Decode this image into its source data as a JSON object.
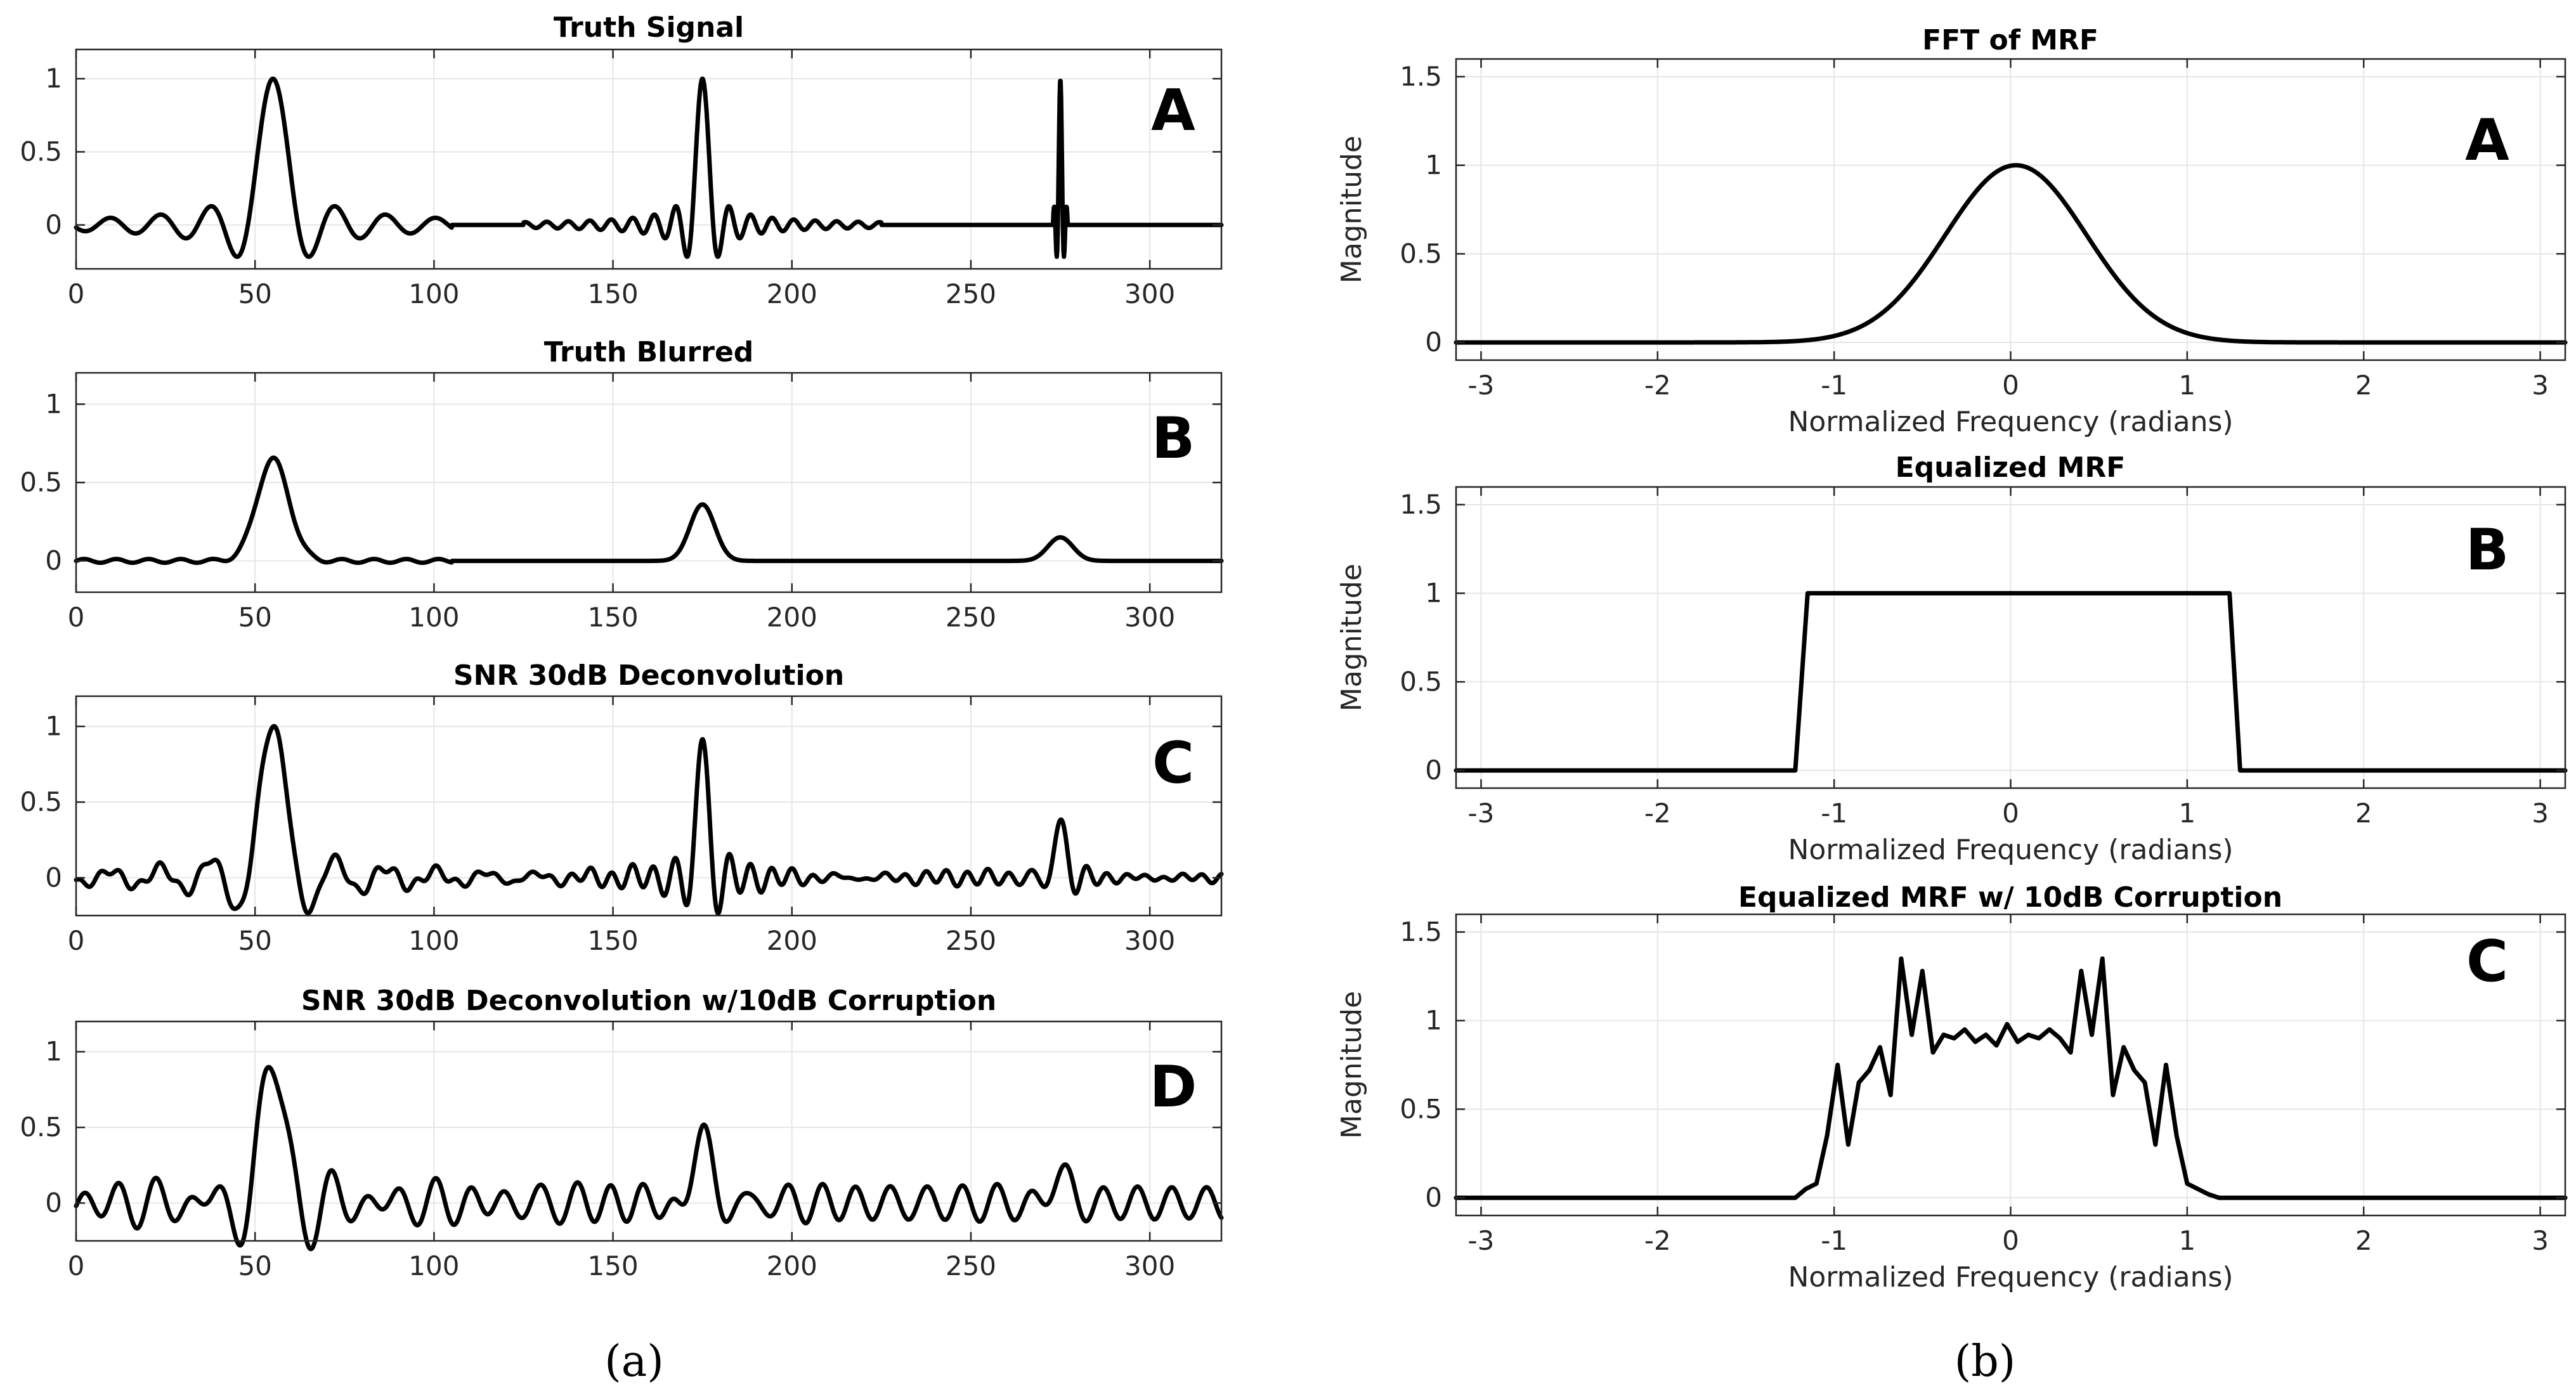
{
  "figure": {
    "captions": [
      "(a)",
      "(b)"
    ],
    "colors": {
      "line": "#000000",
      "grid": "#e6e6e6",
      "axis": "#262626",
      "background": "#ffffff"
    }
  },
  "chart_data": [
    {
      "id": "a1",
      "type": "line",
      "title": "Truth Signal",
      "panel_letter": "A",
      "xlabel": "",
      "ylabel": "",
      "xlim": [
        0,
        320
      ],
      "ylim": [
        -0.3,
        1.2
      ],
      "xticks": [
        0,
        50,
        100,
        150,
        200,
        250,
        300
      ],
      "xtick_labels": [
        "0",
        "50",
        "100",
        "150",
        "200",
        "250",
        "300"
      ],
      "yticks": [
        0,
        0.5,
        1
      ],
      "ytick_labels": [
        "0",
        "0.5",
        "1"
      ],
      "grid": true,
      "series": [
        {
          "name": "Truth Signal",
          "generator": "sinc_pulses",
          "pulses": [
            {
              "center": 55,
              "amplitude": 1.0,
              "width": 7,
              "support": [
                0,
                105
              ]
            },
            {
              "center": 175,
              "amplitude": 1.0,
              "width": 3,
              "support": [
                125,
                225
              ]
            },
            {
              "center": 275,
              "amplitude": 1.0,
              "width": 0.7,
              "support": [
                273,
                277
              ]
            }
          ]
        }
      ]
    },
    {
      "id": "a2",
      "type": "line",
      "title": "Truth Blurred",
      "panel_letter": "B",
      "xlabel": "",
      "ylabel": "",
      "xlim": [
        0,
        320
      ],
      "ylim": [
        -0.2,
        1.2
      ],
      "xticks": [
        0,
        50,
        100,
        150,
        200,
        250,
        300
      ],
      "xtick_labels": [
        "0",
        "50",
        "100",
        "150",
        "200",
        "250",
        "300"
      ],
      "yticks": [
        0,
        0.5,
        1
      ],
      "ytick_labels": [
        "0",
        "0.5",
        "1"
      ],
      "grid": true,
      "series": [
        {
          "name": "Truth Blurred",
          "generator": "gauss_pulses",
          "ripple": {
            "amplitude": 0.012,
            "period": 9,
            "range": [
              0,
              105
            ]
          },
          "pulses": [
            {
              "center": 55,
              "amplitude": 0.65,
              "sigma": 4.5
            },
            {
              "center": 175,
              "amplitude": 0.36,
              "sigma": 3.5
            },
            {
              "center": 275,
              "amplitude": 0.15,
              "sigma": 3.5
            }
          ]
        }
      ]
    },
    {
      "id": "a3",
      "type": "line",
      "title": "SNR 30dB Deconvolution",
      "panel_letter": "C",
      "xlabel": "",
      "ylabel": "",
      "xlim": [
        0,
        320
      ],
      "ylim": [
        -0.25,
        1.2
      ],
      "xticks": [
        0,
        50,
        100,
        150,
        200,
        250,
        300
      ],
      "xtick_labels": [
        "0",
        "50",
        "100",
        "150",
        "200",
        "250",
        "300"
      ],
      "yticks": [
        0,
        0.5,
        1
      ],
      "ytick_labels": [
        "0",
        "0.5",
        "1"
      ],
      "grid": true,
      "series": [
        {
          "name": "SNR 30dB Deconvolution",
          "generator": "sinc_pulses",
          "ripple": {
            "amplitude": 0.025,
            "period": 5.5
          },
          "pulses": [
            {
              "center": 55,
              "amplitude": 1.0,
              "width": 7,
              "support": [
                0,
                320
              ]
            },
            {
              "center": 175,
              "amplitude": 0.95,
              "width": 3,
              "support": [
                0,
                320
              ]
            },
            {
              "center": 275,
              "amplitude": 0.4,
              "width": 3,
              "support": [
                0,
                320
              ]
            }
          ]
        }
      ]
    },
    {
      "id": "a4",
      "type": "line",
      "title": "SNR 30dB Deconvolution w/10dB Corruption",
      "panel_letter": "D",
      "xlabel": "",
      "ylabel": "",
      "xlim": [
        0,
        320
      ],
      "ylim": [
        -0.25,
        1.2
      ],
      "xticks": [
        0,
        50,
        100,
        150,
        200,
        250,
        300
      ],
      "xtick_labels": [
        "0",
        "50",
        "100",
        "150",
        "200",
        "250",
        "300"
      ],
      "yticks": [
        0,
        0.5,
        1
      ],
      "ytick_labels": [
        "0",
        "0.5",
        "1"
      ],
      "grid": true,
      "series": [
        {
          "name": "SNR 30dB Deconvolution w/10dB Corruption",
          "generator": "sinc_pulses",
          "ripple": {
            "amplitude": 0.11,
            "period": 9.8
          },
          "pulses": [
            {
              "center": 55,
              "amplitude": 0.93,
              "width": 7,
              "support": [
                0,
                320
              ]
            },
            {
              "center": 175,
              "amplitude": 0.6,
              "width": 4,
              "support": [
                0,
                320
              ]
            },
            {
              "center": 275,
              "amplitude": 0.18,
              "width": 6,
              "support": [
                0,
                320
              ]
            }
          ]
        }
      ]
    },
    {
      "id": "b1",
      "type": "line",
      "title": "FFT of MRF",
      "panel_letter": "A",
      "xlabel": "Normalized Frequency (radians)",
      "ylabel": "Magnitude",
      "xlim": [
        -3.1416,
        3.1416
      ],
      "ylim": [
        -0.1,
        1.6
      ],
      "xticks": [
        -3,
        -2,
        -1,
        0,
        1,
        2,
        3
      ],
      "xtick_labels": [
        "-3",
        "-2",
        "-1",
        "0",
        "1",
        "2",
        "3"
      ],
      "yticks": [
        0,
        0.5,
        1,
        1.5
      ],
      "ytick_labels": [
        "0",
        "0.5",
        "1",
        "1.5"
      ],
      "grid": true,
      "series": [
        {
          "name": "FFT of MRF",
          "generator": "gaussian",
          "center": 0.03,
          "amplitude": 1.0,
          "sigma": 0.4
        }
      ]
    },
    {
      "id": "b2",
      "type": "line",
      "title": "Equalized MRF",
      "panel_letter": "B",
      "xlabel": "Normalized Frequency (radians)",
      "ylabel": "Magnitude",
      "xlim": [
        -3.1416,
        3.1416
      ],
      "ylim": [
        -0.1,
        1.6
      ],
      "xticks": [
        -3,
        -2,
        -1,
        0,
        1,
        2,
        3
      ],
      "xtick_labels": [
        "-3",
        "-2",
        "-1",
        "0",
        "1",
        "2",
        "3"
      ],
      "yticks": [
        0,
        0.5,
        1,
        1.5
      ],
      "ytick_labels": [
        "0",
        "0.5",
        "1",
        "1.5"
      ],
      "grid": true,
      "series": [
        {
          "name": "Equalized MRF",
          "generator": "points",
          "x": [
            -3.1416,
            -1.22,
            -1.15,
            1.24,
            1.3,
            3.1416
          ],
          "y": [
            0,
            0,
            1,
            1,
            0,
            0
          ]
        }
      ]
    },
    {
      "id": "b3",
      "type": "line",
      "title": "Equalized MRF w/ 10dB Corruption",
      "panel_letter": "C",
      "xlabel": "Normalized Frequency (radians)",
      "ylabel": "Magnitude",
      "xlim": [
        -3.1416,
        3.1416
      ],
      "ylim": [
        -0.1,
        1.6
      ],
      "xticks": [
        -3,
        -2,
        -1,
        0,
        1,
        2,
        3
      ],
      "xtick_labels": [
        "-3",
        "-2",
        "-1",
        "0",
        "1",
        "2",
        "3"
      ],
      "yticks": [
        0,
        0.5,
        1,
        1.5
      ],
      "ytick_labels": [
        "0",
        "0.5",
        "1",
        "1.5"
      ],
      "grid": true,
      "series": [
        {
          "name": "Equalized MRF w/ 10dB Corruption",
          "generator": "points",
          "x": [
            -3.1416,
            -1.22,
            -1.16,
            -1.1,
            -1.04,
            -0.98,
            -0.92,
            -0.86,
            -0.8,
            -0.74,
            -0.68,
            -0.62,
            -0.56,
            -0.5,
            -0.44,
            -0.38,
            -0.32,
            -0.26,
            -0.2,
            -0.14,
            -0.08,
            -0.02,
            0.04,
            0.1,
            0.16,
            0.22,
            0.28,
            0.34,
            0.4,
            0.46,
            0.52,
            0.58,
            0.64,
            0.7,
            0.76,
            0.82,
            0.88,
            0.94,
            1.0,
            1.06,
            1.12,
            1.18,
            1.24,
            1.3,
            3.1416
          ],
          "y": [
            0,
            0,
            0.05,
            0.08,
            0.35,
            0.75,
            0.3,
            0.65,
            0.72,
            0.85,
            0.58,
            1.35,
            0.92,
            1.28,
            0.82,
            0.92,
            0.9,
            0.95,
            0.88,
            0.92,
            0.86,
            0.98,
            0.88,
            0.92,
            0.9,
            0.95,
            0.9,
            0.82,
            1.28,
            0.92,
            1.35,
            0.58,
            0.85,
            0.72,
            0.65,
            0.3,
            0.75,
            0.35,
            0.08,
            0.05,
            0.02,
            0,
            0,
            0,
            0
          ]
        }
      ]
    }
  ]
}
